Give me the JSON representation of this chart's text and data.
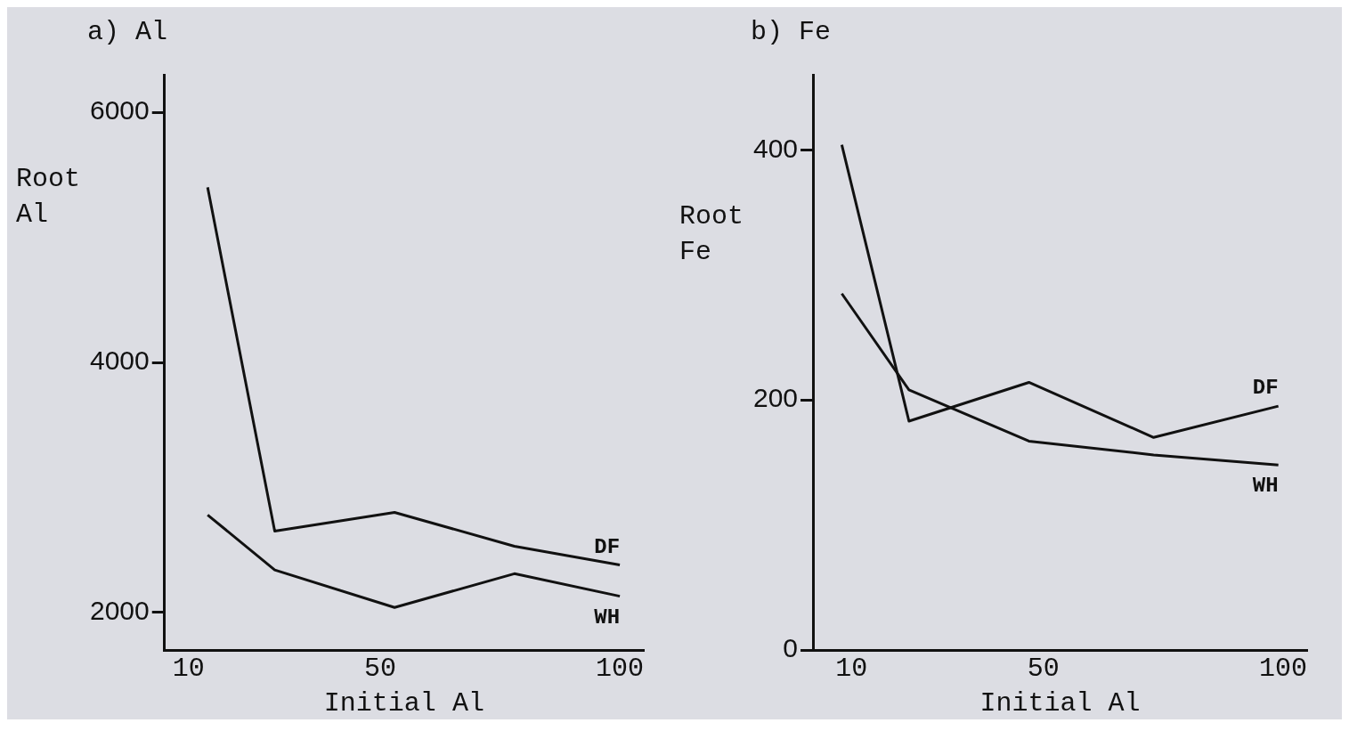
{
  "chart_data": [
    {
      "type": "line",
      "title": "a) Al",
      "xlabel": "Initial Al",
      "ylabel": "Root Al",
      "xlim": [
        5,
        105
      ],
      "xticks": [
        10,
        50,
        100
      ],
      "ylim": [
        1700,
        6300
      ],
      "yticks": [
        2000,
        4000,
        6000
      ],
      "grid": false,
      "legend": false,
      "marker": "none",
      "line_style": "solid",
      "series": [
        {
          "name": "DF",
          "color": "#111111",
          "x": [
            14,
            28,
            53,
            78,
            100
          ],
          "values": [
            5400,
            2650,
            2800,
            2530,
            2380
          ]
        },
        {
          "name": "WH",
          "color": "#111111",
          "x": [
            14,
            28,
            53,
            78,
            100
          ],
          "values": [
            2780,
            2340,
            2040,
            2310,
            2130
          ]
        }
      ]
    },
    {
      "type": "line",
      "title": "b) Fe",
      "xlabel": "Initial Al",
      "ylabel": "Root Fe",
      "xlim": [
        2,
        105
      ],
      "xticks": [
        10,
        50,
        100
      ],
      "ylim": [
        0,
        460
      ],
      "yticks": [
        0,
        200,
        400
      ],
      "grid": false,
      "legend": false,
      "marker": "none",
      "line_style": "solid",
      "series": [
        {
          "name": "DF",
          "color": "#111111",
          "x": [
            8,
            22,
            47,
            73,
            99
          ],
          "values": [
            404,
            183,
            214,
            170,
            195
          ]
        },
        {
          "name": "WH",
          "color": "#111111",
          "x": [
            8,
            22,
            47,
            73,
            99
          ],
          "values": [
            285,
            208,
            167,
            156,
            148
          ]
        }
      ]
    }
  ]
}
